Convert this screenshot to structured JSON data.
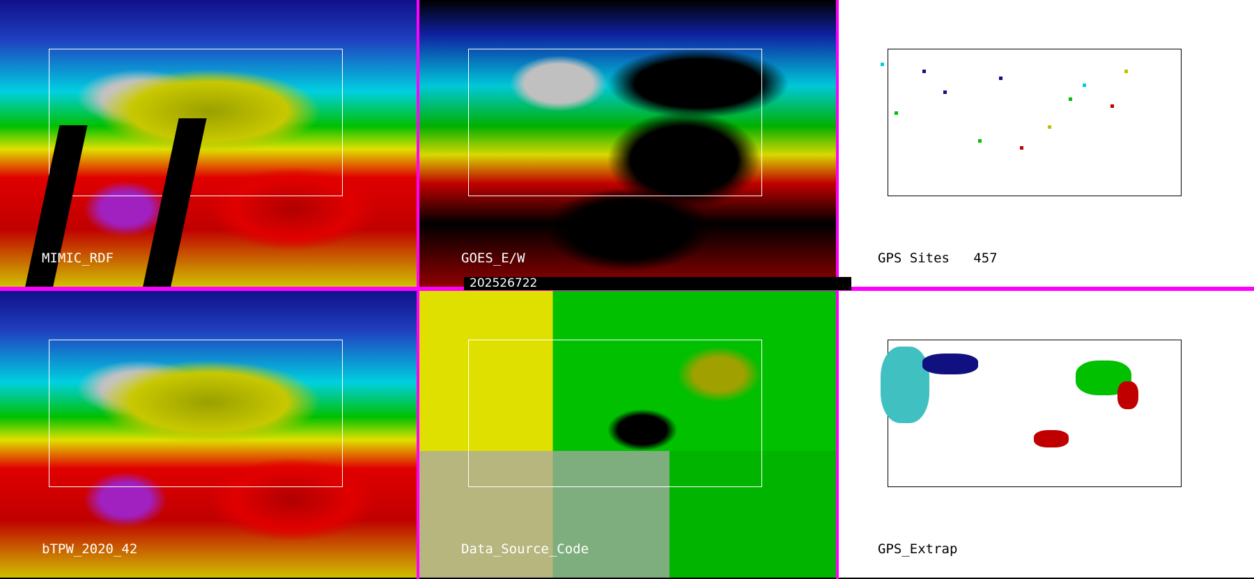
{
  "timestamp": "202526722",
  "panels": [
    {
      "label": "MIMIC_RDF"
    },
    {
      "label": "GOES_E/W"
    },
    {
      "label": "GPS Sites",
      "count": "457"
    },
    {
      "label": "bTPW_2020_42"
    },
    {
      "label": "Data_Source_Code"
    },
    {
      "label": "GPS_Extrap"
    }
  ],
  "colors": {
    "separator": "#ff00ff",
    "map_lines_dark": "#ffffff",
    "map_lines_light": "#000000"
  }
}
